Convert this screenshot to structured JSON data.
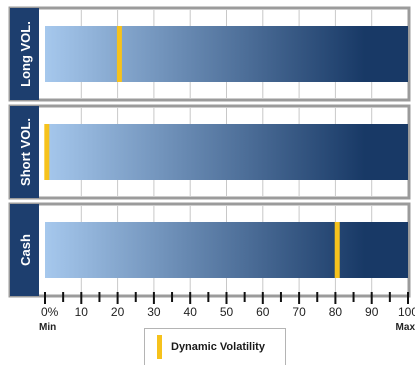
{
  "chart_data": {
    "type": "bar",
    "categories": [
      "Long VOL.",
      "Short VOL.",
      "Cash"
    ],
    "values": [
      20.5,
      0.5,
      80.5
    ],
    "xlim": [
      0,
      100
    ],
    "x_ticks": [
      "0%",
      "10",
      "20",
      "30",
      "40",
      "50",
      "60",
      "70",
      "80",
      "90",
      "100"
    ],
    "x_min_label": "Min",
    "x_max_label": "Max",
    "legend": {
      "label": "Dynamic Volatility",
      "placement": "bottom-center"
    },
    "grid": true,
    "colors": {
      "gradient_start": "#a6c8ed",
      "gradient_end": "#183966",
      "marker": "#f6c21c",
      "label_band": "#1d3e6e",
      "border": "#9b9b9b"
    }
  }
}
